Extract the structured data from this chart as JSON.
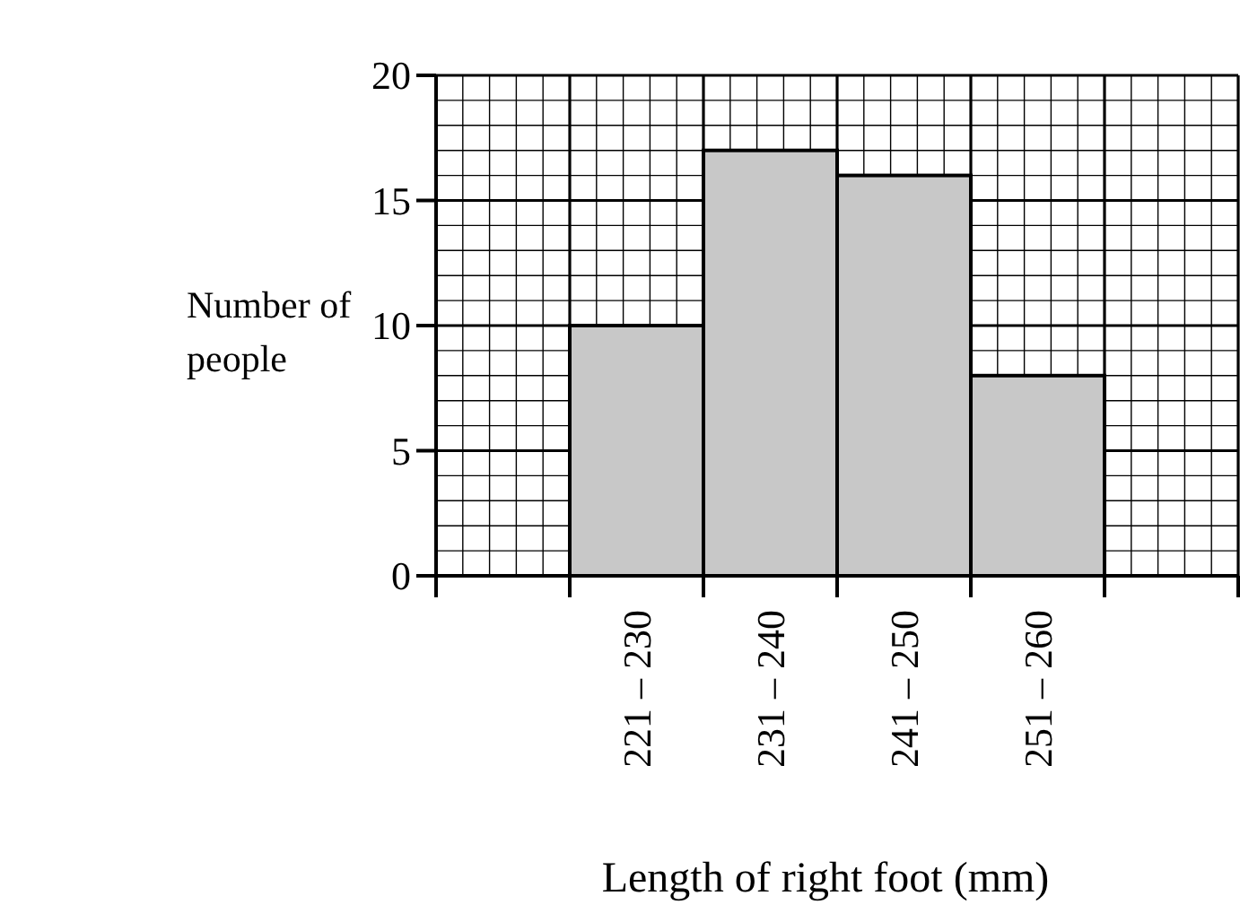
{
  "chart_data": {
    "type": "bar",
    "xlabel": "Length of right foot (mm)",
    "ylabel": "Number of\npeople",
    "categories": [
      null,
      "221 – 230",
      "231 – 240",
      "241 – 250",
      "251 – 260",
      null
    ],
    "values": [
      null,
      10,
      17,
      16,
      8,
      null
    ],
    "color": "#c8c8c8",
    "ylim": [
      0,
      20
    ],
    "yticks": [
      0,
      5,
      10,
      15,
      20
    ],
    "grid": true
  }
}
